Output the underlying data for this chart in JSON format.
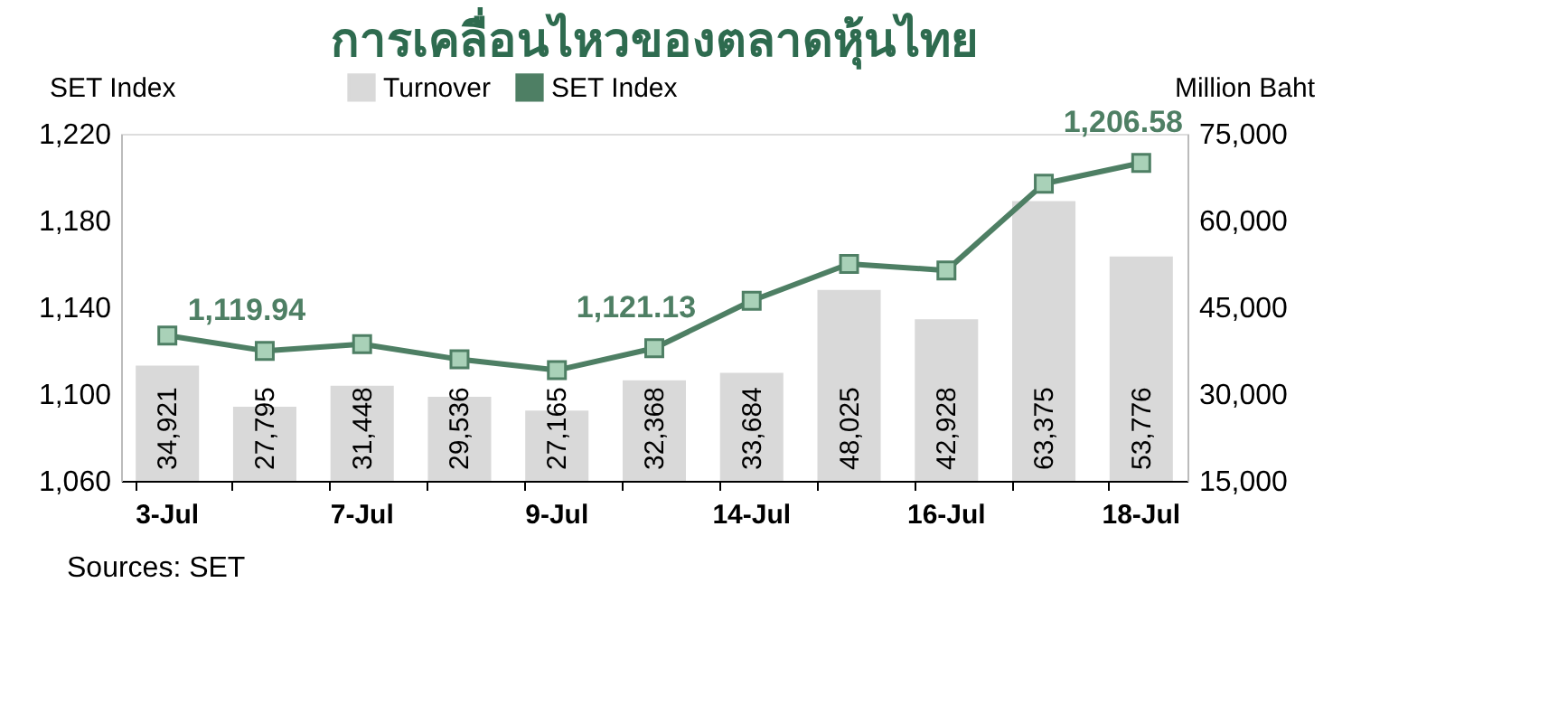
{
  "chart_data": {
    "type": "bar",
    "title": "การเคลื่อนไหวของตลาดหุ้นไทย",
    "ylabel": "SET Index",
    "y2label": "Million Baht",
    "categories": [
      "3-Jul",
      null,
      "7-Jul",
      null,
      "9-Jul",
      null,
      "14-Jul",
      null,
      "16-Jul",
      null,
      "18-Jul"
    ],
    "series": [
      {
        "name": "Turnover",
        "axis": "y2",
        "color": "#d9d9d9",
        "values": [
          34921,
          27795,
          31448,
          29536,
          27165,
          32368,
          33684,
          48025,
          42928,
          63375,
          53776
        ],
        "value_labels": [
          "34,921",
          "27,795",
          "31,448",
          "29,536",
          "27,165",
          "32,368",
          "33,684",
          "48,025",
          "42,928",
          "63,375",
          "53,776"
        ]
      },
      {
        "name": "SET Index",
        "type": "line",
        "color": "#4e7f64",
        "marker": "square",
        "line_style": "solid",
        "values": [
          1127,
          1119.94,
          1123,
          1116,
          1111,
          1121.13,
          1143,
          1160,
          1157,
          1197,
          1206.58
        ],
        "value_labels": [
          null,
          "1,119.94",
          null,
          null,
          null,
          "1,121.13",
          null,
          null,
          null,
          null,
          "1,206.58"
        ]
      }
    ],
    "ylim": [
      1060,
      1220
    ],
    "yticks": [
      {
        "value": 1060,
        "label": "1,060"
      },
      {
        "value": 1100,
        "label": "1,100"
      },
      {
        "value": 1140,
        "label": "1,140"
      },
      {
        "value": 1180,
        "label": "1,180"
      },
      {
        "value": 1220,
        "label": "1,220"
      }
    ],
    "y2lim": [
      15000,
      75000
    ],
    "y2ticks": [
      {
        "value": 15000,
        "label": "15,000"
      },
      {
        "value": 30000,
        "label": "30,000"
      },
      {
        "value": 45000,
        "label": "45,000"
      },
      {
        "value": 60000,
        "label": "60,000"
      },
      {
        "value": 75000,
        "label": "75,000"
      }
    ],
    "grid": false,
    "legend": "top",
    "annotations": [
      "Sources: SET"
    ]
  }
}
